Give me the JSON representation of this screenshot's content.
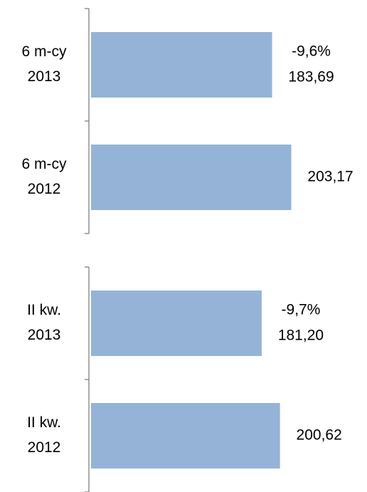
{
  "chart_data": [
    {
      "type": "bar",
      "orientation": "horizontal",
      "categories": [
        [
          "6 m-cy",
          "2013"
        ],
        [
          "6 m-cy",
          "2012"
        ]
      ],
      "values": [
        183.69,
        203.17
      ],
      "value_labels": [
        "183,69",
        "203,17"
      ],
      "annotation": "-9,6%",
      "color": "#95b3d7",
      "xlim": [
        0,
        280
      ]
    },
    {
      "type": "bar",
      "orientation": "horizontal",
      "categories": [
        [
          "II kw.",
          "2013"
        ],
        [
          "II kw.",
          "2012"
        ]
      ],
      "values": [
        181.2,
        200.62
      ],
      "value_labels": [
        "181,20",
        "200,62"
      ],
      "annotation": "-9,7%",
      "color": "#95b3d7",
      "xlim": [
        0,
        293
      ]
    }
  ]
}
